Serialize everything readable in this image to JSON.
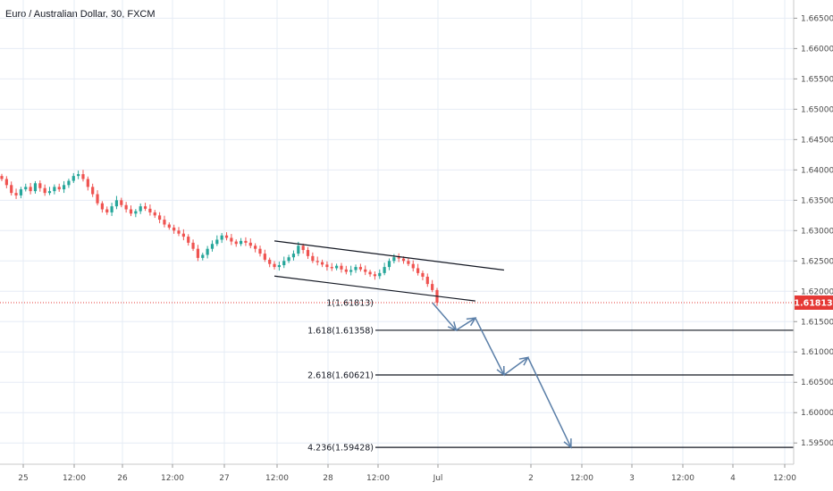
{
  "header": {
    "title": "Euro / Australian Dollar, 30, FXCM"
  },
  "colors": {
    "up": "#26a69a",
    "down": "#ef5350",
    "grid": "#e6ecf5",
    "axis_text": "#4a4a4a",
    "current_price": "#e53935",
    "projection_arrow": "#5b7fa8",
    "trendline": "#131722"
  },
  "chart_data": {
    "type": "candlestick",
    "title": "Euro / Australian Dollar, 30, FXCM",
    "symbol": "EURAUD",
    "timeframe": "30",
    "source": "FXCM",
    "ylim": [
      1.5915,
      1.668
    ],
    "y_ticks": [
      "1.66500",
      "1.66000",
      "1.65500",
      "1.65000",
      "1.64500",
      "1.64000",
      "1.63500",
      "1.63000",
      "1.62500",
      "1.62000",
      "1.61500",
      "1.61000",
      "1.60500",
      "1.60000",
      "1.59500"
    ],
    "x_ticks": [
      "25",
      "12:00",
      "26",
      "12:00",
      "27",
      "12:00",
      "28",
      "12:00",
      "Jul",
      "2",
      "12:00",
      "3",
      "12:00",
      "4",
      "12:00"
    ],
    "current_price": 1.61813,
    "current_price_label": "1.61813",
    "candles_close": [
      1.6385,
      1.6375,
      1.6362,
      1.6358,
      1.6368,
      1.6372,
      1.6365,
      1.6378,
      1.637,
      1.6362,
      1.6365,
      1.6372,
      1.6368,
      1.6375,
      1.6382,
      1.639,
      1.6393,
      1.6385,
      1.6372,
      1.636,
      1.6345,
      1.6335,
      1.633,
      1.634,
      1.635,
      1.6342,
      1.6335,
      1.6328,
      1.6332,
      1.634,
      1.6336,
      1.633,
      1.6325,
      1.6318,
      1.631,
      1.6305,
      1.63,
      1.6295,
      1.629,
      1.628,
      1.627,
      1.6255,
      1.626,
      1.627,
      1.6278,
      1.6285,
      1.6292,
      1.6288,
      1.6282,
      1.6278,
      1.6283,
      1.628,
      1.6275,
      1.627,
      1.6262,
      1.6252,
      1.6245,
      1.624,
      1.6243,
      1.625,
      1.6256,
      1.6262,
      1.6275,
      1.6268,
      1.6258,
      1.625,
      1.6248,
      1.6244,
      1.624,
      1.6238,
      1.6242,
      1.6236,
      1.6232,
      1.6235,
      1.624,
      1.6236,
      1.6232,
      1.6228,
      1.6225,
      1.623,
      1.624,
      1.625,
      1.6256,
      1.6254,
      1.625,
      1.6245,
      1.6238,
      1.623,
      1.6224,
      1.6212,
      1.6202,
      1.61813
    ],
    "channel": {
      "upper": {
        "start": [
          57,
          1.6283
        ],
        "end": [
          105,
          1.6235
        ]
      },
      "lower": {
        "start": [
          57,
          1.6225
        ],
        "end": [
          99,
          1.6184
        ]
      }
    },
    "fib_extension": [
      {
        "label": "1(1.61813)",
        "value": 1.61813
      },
      {
        "label": "1.618(1.61358)",
        "value": 1.61358
      },
      {
        "label": "2.618(1.60621)",
        "value": 1.60621
      },
      {
        "label": "4.236(1.59428)",
        "value": 1.59428
      }
    ],
    "projection_path": [
      [
        90,
        1.61813
      ],
      [
        95,
        1.61358
      ],
      [
        99,
        1.6156
      ],
      [
        105,
        1.60621
      ],
      [
        110,
        1.6091
      ],
      [
        119,
        1.59428
      ]
    ],
    "grid": true
  }
}
